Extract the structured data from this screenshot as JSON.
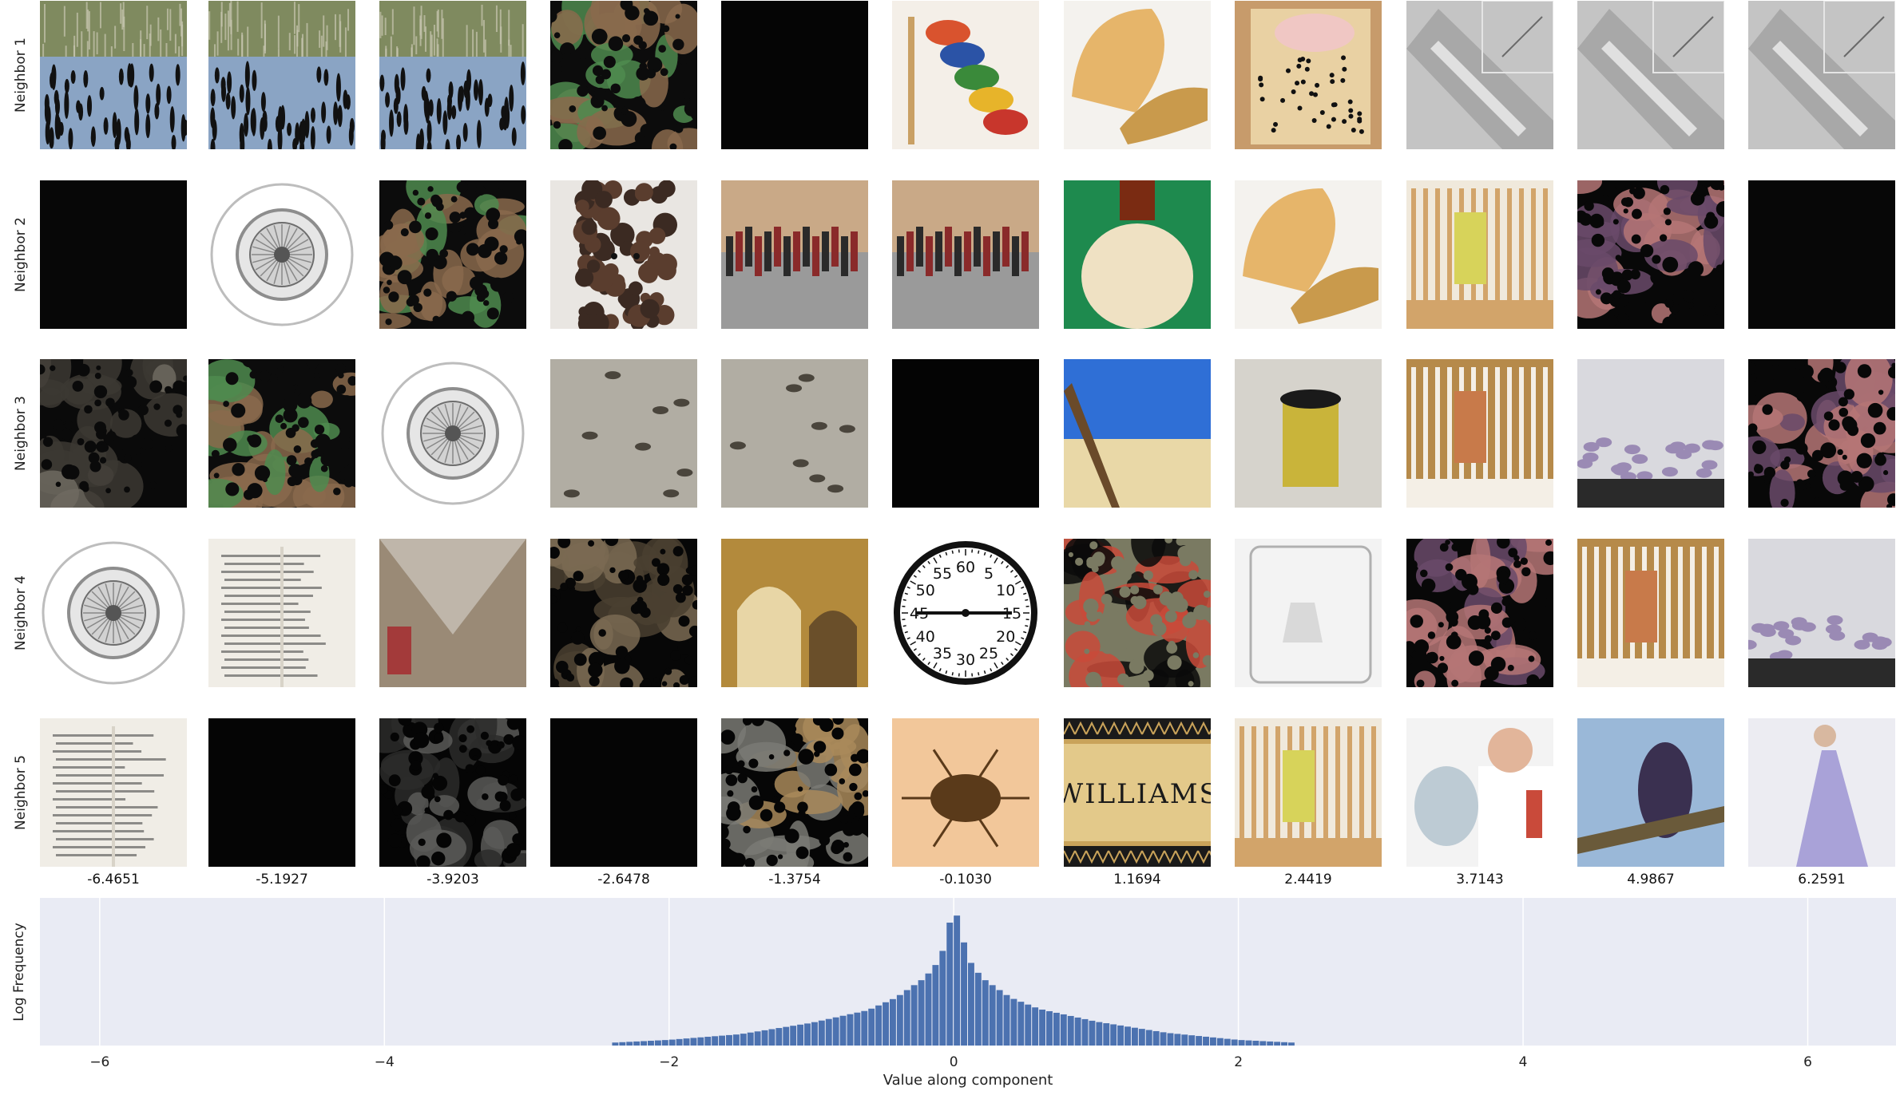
{
  "chart_data": {
    "type": "image-grid-with-histogram",
    "row_labels": [
      "Neighbor 1",
      "Neighbor 2",
      "Neighbor 3",
      "Neighbor 4",
      "Neighbor 5"
    ],
    "column_values": [
      "-6.4651",
      "-5.1927",
      "-3.9203",
      "-2.6478",
      "-1.3754",
      "-0.1030",
      "1.1694",
      "2.4419",
      "3.7143",
      "4.9867",
      "6.2591"
    ],
    "thumbnails": [
      [
        {
          "subject": "lake reflection",
          "colors": [
            "#6f7e63",
            "#8aa4c4",
            "#3c4a3a"
          ]
        },
        {
          "subject": "lake reflection",
          "colors": [
            "#6f7e63",
            "#8aa4c4",
            "#3c4a3a"
          ]
        },
        {
          "subject": "lake reflection",
          "colors": [
            "#6f7e63",
            "#8aa4c4",
            "#3c4a3a"
          ]
        },
        {
          "subject": "masked clutter",
          "colors": [
            "#0c0c0c",
            "#8a6a4c",
            "#4f8b4f"
          ]
        },
        {
          "subject": "black",
          "colors": [
            "#050505",
            "#050505",
            "#0a0a0a"
          ]
        },
        {
          "subject": "bead toy",
          "colors": [
            "#f4efe8",
            "#d9532e",
            "#2b53a6"
          ]
        },
        {
          "subject": "melon",
          "colors": [
            "#f4f2ee",
            "#e6b56a",
            "#c99a4c"
          ]
        },
        {
          "subject": "pink poster",
          "colors": [
            "#c79b6b",
            "#f0c7c4",
            "#e9d1a3"
          ]
        },
        {
          "subject": "silver pen",
          "colors": [
            "#c4c4c4",
            "#a8a8a8",
            "#6a6a6a"
          ]
        },
        {
          "subject": "silver pen",
          "colors": [
            "#c4c4c4",
            "#a8a8a8",
            "#6a6a6a"
          ]
        },
        {
          "subject": "silver pen",
          "colors": [
            "#c4c4c4",
            "#a8a8a8",
            "#6a6a6a"
          ]
        }
      ],
      [
        {
          "subject": "black",
          "colors": [
            "#070707",
            "#070707",
            "#0c0c0c"
          ]
        },
        {
          "subject": "downlight",
          "colors": [
            "#ffffff",
            "#d2d2d2",
            "#8d8d8d"
          ]
        },
        {
          "subject": "masked clutter",
          "colors": [
            "#0c0c0c",
            "#8a6a4c",
            "#4f8b4f"
          ]
        },
        {
          "subject": "spaniel",
          "colors": [
            "#e9e6e2",
            "#5a3d2e",
            "#3b2a22"
          ]
        },
        {
          "subject": "bottles shelf",
          "colors": [
            "#c9a987",
            "#8a2a2a",
            "#2a2a2a"
          ]
        },
        {
          "subject": "bottles shelf",
          "colors": [
            "#c9a987",
            "#8a2a2a",
            "#2a2a2a"
          ]
        },
        {
          "subject": "jug",
          "colors": [
            "#1e8a4e",
            "#efe1c3",
            "#7a2b12"
          ]
        },
        {
          "subject": "melon",
          "colors": [
            "#f4f2ee",
            "#e6b56a",
            "#c99a4c"
          ]
        },
        {
          "subject": "crib",
          "colors": [
            "#f0e9dc",
            "#d2a46a",
            "#d7d35a"
          ]
        },
        {
          "subject": "masked dots",
          "colors": [
            "#080808",
            "#b57575",
            "#6a4a6a"
          ]
        },
        {
          "subject": "black",
          "colors": [
            "#070707",
            "#070707",
            "#0c0c0c"
          ]
        }
      ],
      [
        {
          "subject": "masked dark",
          "colors": [
            "#0a0a0a",
            "#6e6a60",
            "#3c3832"
          ]
        },
        {
          "subject": "masked clutter",
          "colors": [
            "#0c0c0c",
            "#8a6a4c",
            "#4f8b4f"
          ]
        },
        {
          "subject": "downlight",
          "colors": [
            "#ffffff",
            "#d2d2d2",
            "#8d8d8d"
          ]
        },
        {
          "subject": "grey bugs",
          "colors": [
            "#b1ada3",
            "#8f8a7f",
            "#4a453c"
          ]
        },
        {
          "subject": "grey bugs",
          "colors": [
            "#b1ada3",
            "#8f8a7f",
            "#4a453c"
          ]
        },
        {
          "subject": "black",
          "colors": [
            "#040404",
            "#040404",
            "#080808"
          ]
        },
        {
          "subject": "beach",
          "colors": [
            "#2f6fd6",
            "#e9d8a7",
            "#6a4a2a"
          ]
        },
        {
          "subject": "trash bin",
          "colors": [
            "#d6d3cc",
            "#1a1a1a",
            "#c9b43a"
          ]
        },
        {
          "subject": "bathtub",
          "colors": [
            "#b68a4a",
            "#f4efe6",
            "#c87a4a"
          ]
        },
        {
          "subject": "freight car",
          "colors": [
            "#d9d9de",
            "#9a8ab4",
            "#2a2a2a"
          ]
        },
        {
          "subject": "masked dots",
          "colors": [
            "#080808",
            "#b57575",
            "#6a4a6a"
          ]
        }
      ],
      [
        {
          "subject": "downlight",
          "colors": [
            "#ffffff",
            "#d2d2d2",
            "#8d8d8d"
          ]
        },
        {
          "subject": "chinese text",
          "colors": [
            "#f0ede6",
            "#d8d3c8",
            "#4a4a4a"
          ]
        },
        {
          "subject": "net room",
          "colors": [
            "#9a8a76",
            "#cfc9c0",
            "#a33a3a"
          ]
        },
        {
          "subject": "masked dark",
          "colors": [
            "#070707",
            "#7a6a52",
            "#4a3f30"
          ]
        },
        {
          "subject": "arches",
          "colors": [
            "#b38a3c",
            "#6a4f2a",
            "#e8d6a6"
          ]
        },
        {
          "subject": "clock dial",
          "colors": [
            "#ffffff",
            "#111111",
            "#777777"
          ]
        },
        {
          "subject": "masked yard",
          "colors": [
            "#7a7a62",
            "#c94a3a",
            "#0a0a0a"
          ]
        },
        {
          "subject": "glass beaker",
          "colors": [
            "#f3f3f3",
            "#d9d9d9",
            "#b0b0b0"
          ]
        },
        {
          "subject": "masked dots",
          "colors": [
            "#080808",
            "#b57575",
            "#6a4a6a"
          ]
        },
        {
          "subject": "bathtub",
          "colors": [
            "#b68a4a",
            "#f4efe6",
            "#c87a4a"
          ]
        },
        {
          "subject": "freight car",
          "colors": [
            "#d9d9de",
            "#9a8ab4",
            "#2a2a2a"
          ]
        }
      ],
      [
        {
          "subject": "chinese text",
          "colors": [
            "#f0ede6",
            "#d8d3c8",
            "#4a4a4a"
          ]
        },
        {
          "subject": "black",
          "colors": [
            "#050505",
            "#050505",
            "#0a0a0a"
          ]
        },
        {
          "subject": "masked dark",
          "colors": [
            "#050505",
            "#5a5a58",
            "#2c2c2a"
          ]
        },
        {
          "subject": "black",
          "colors": [
            "#050505",
            "#050505",
            "#0a0a0a"
          ]
        },
        {
          "subject": "masked animal",
          "colors": [
            "#060606",
            "#7a7a74",
            "#a98a5a"
          ]
        },
        {
          "subject": "weevil",
          "colors": [
            "#f2c79a",
            "#e8a46a",
            "#5a3a1a"
          ]
        },
        {
          "subject": "williams sign",
          "colors": [
            "#e3c98a",
            "#1a1a1a",
            "#c9a35a"
          ]
        },
        {
          "subject": "crib",
          "colors": [
            "#f0e9dc",
            "#d2a46a",
            "#d7d35a"
          ]
        },
        {
          "subject": "dentist",
          "colors": [
            "#f3f3f3",
            "#c94a3a",
            "#9ab0c0"
          ]
        },
        {
          "subject": "lemur",
          "colors": [
            "#9ab8d8",
            "#3a3050",
            "#8a9a5a"
          ]
        },
        {
          "subject": "purple gown",
          "colors": [
            "#ececf2",
            "#a9a2d8",
            "#d8b8a0"
          ]
        }
      ]
    ],
    "thumbnail_captions": {
      "clock_numbers": [
        "60",
        "5",
        "10",
        "15",
        "20",
        "25",
        "30",
        "35",
        "40",
        "45",
        "50",
        "55"
      ],
      "sign_text": "WILLIAMS"
    },
    "histogram": {
      "xlabel": "Value along component",
      "ylabel": "Log Frequency",
      "xlim": [
        -6.42,
        6.62
      ],
      "xticks": [
        -6,
        -4,
        -2,
        0,
        2,
        4,
        6
      ],
      "grid": true,
      "bar_color": "#4c72b0",
      "bin_width": 0.05,
      "log_frequency_curve": {
        "x": [
          -2.4,
          -2.0,
          -1.5,
          -1.0,
          -0.6,
          -0.4,
          -0.2,
          -0.1,
          -0.05,
          0.0,
          0.05,
          0.1,
          0.2,
          0.4,
          0.6,
          1.0,
          1.5,
          2.0,
          2.4
        ],
        "y": [
          0.02,
          0.04,
          0.08,
          0.16,
          0.25,
          0.34,
          0.48,
          0.6,
          0.74,
          1.0,
          0.84,
          0.62,
          0.48,
          0.34,
          0.26,
          0.17,
          0.09,
          0.04,
          0.02
        ]
      }
    }
  }
}
